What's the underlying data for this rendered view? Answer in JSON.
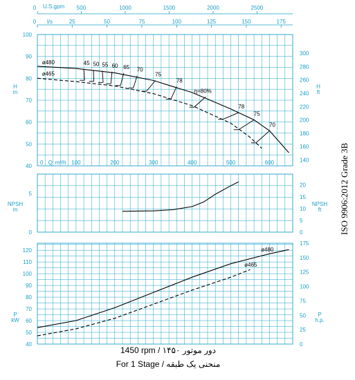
{
  "chart_data": {
    "type": "line",
    "top_axis": {
      "usgpm_label": "U.S.gpm",
      "usgpm_ticks": [
        "0",
        "500",
        "1000",
        "1500",
        "2000",
        "2500"
      ],
      "usgpm_values": [
        0,
        500,
        1000,
        1500,
        2000,
        2500
      ],
      "ls_label": "l/s",
      "ls_ticks": [
        "0",
        "25",
        "50",
        "75",
        "100",
        "125",
        "150",
        "175"
      ],
      "ls_values": [
        0,
        25,
        50,
        75,
        100,
        125,
        150,
        175
      ]
    },
    "x_axis": {
      "label": "Q",
      "unit": "m³/h",
      "ticks": [
        "0",
        "100",
        "200",
        "300",
        "400",
        "500",
        "600"
      ],
      "values": [
        0,
        100,
        200,
        300,
        400,
        500,
        600
      ],
      "range": [
        0,
        660
      ]
    },
    "head_panel": {
      "ylabel_left": "H",
      "unit_left": "m",
      "ylim_left": [
        40,
        100
      ],
      "yticks_left": [
        "40",
        "50",
        "60",
        "70",
        "80",
        "90",
        "100"
      ],
      "ylabel_right": "H",
      "unit_right": "ft",
      "ylim_right": [
        131.23,
        328.08
      ],
      "yticks_right": [
        "140",
        "160",
        "180",
        "200",
        "220",
        "240",
        "260",
        "280",
        "300"
      ],
      "series": [
        {
          "name": "ø480",
          "style": "solid",
          "x": [
            0,
            100,
            200,
            300,
            400,
            500,
            560,
            600,
            650
          ],
          "y": [
            85.5,
            84.5,
            82.5,
            79,
            73.5,
            66,
            61,
            56,
            46
          ]
        },
        {
          "name": "ø465",
          "style": "dashed",
          "x": [
            0,
            100,
            200,
            300,
            400,
            500,
            550,
            580
          ],
          "y": [
            80,
            78.5,
            76.5,
            73,
            67.5,
            59.5,
            53,
            48
          ]
        }
      ],
      "efficiency_labels": [
        "45",
        "50",
        "55",
        "60",
        "65",
        "70",
        "75",
        "78",
        "η=80%",
        "78",
        "75",
        "70"
      ],
      "efficiency_lines": [
        {
          "label": "45",
          "x": [
            120,
            122
          ],
          "y": [
            84.2,
            79.1
          ]
        },
        {
          "label": "50",
          "x": [
            145,
            146
          ],
          "y": [
            83.8,
            78.6
          ]
        },
        {
          "label": "55",
          "x": [
            168,
            170
          ],
          "y": [
            83.4,
            78.1
          ]
        },
        {
          "label": "60",
          "x": [
            193,
            190
          ],
          "y": [
            83,
            77.5
          ]
        },
        {
          "label": "65",
          "x": [
            223,
            215
          ],
          "y": [
            82.3,
            76.7
          ]
        },
        {
          "label": "70",
          "x": [
            258,
            248
          ],
          "y": [
            81.2,
            75.6
          ]
        },
        {
          "label": "75",
          "x": [
            305,
            282
          ],
          "y": [
            79,
            74.1
          ]
        },
        {
          "label": "78",
          "x": [
            360,
            345
          ],
          "y": [
            76.2,
            70.5
          ]
        },
        {
          "label": "η=80%",
          "x": [
            435,
            405
          ],
          "y": [
            71.5,
            66.8
          ]
        },
        {
          "label": "78",
          "x": [
            520,
            480
          ],
          "y": [
            64.3,
            61.3
          ]
        },
        {
          "label": "75",
          "x": [
            560,
            520
          ],
          "y": [
            61,
            56.5
          ]
        },
        {
          "label": "70",
          "x": [
            600,
            565
          ],
          "y": [
            56,
            50.5
          ]
        }
      ]
    },
    "npsh_panel": {
      "ylabel_left": "NPSH",
      "unit_left": "m",
      "ylim_left": [
        0,
        7.5
      ],
      "yticks_left": [
        "0",
        "5"
      ],
      "yvalues_left": [
        0,
        5
      ],
      "ylabel_right": "NPSH",
      "unit_right": "ft",
      "ylim_right": [
        0,
        24.6
      ],
      "yticks_right": [
        "0",
        "5",
        "10",
        "15",
        "20"
      ],
      "series": [
        {
          "name": "NPSH",
          "style": "solid",
          "x": [
            220,
            300,
            350,
            400,
            430,
            460,
            500,
            520
          ],
          "y": [
            2.7,
            2.75,
            2.9,
            3.3,
            3.9,
            4.9,
            6.0,
            6.5
          ]
        }
      ]
    },
    "power_panel": {
      "ylabel_left": "P",
      "unit_left": "kW",
      "ylim_left": [
        40,
        126
      ],
      "yticks_left": [
        "40",
        "50",
        "60",
        "70",
        "80",
        "90",
        "100",
        "110",
        "120"
      ],
      "ylabel_right": "P",
      "unit_right": "h.p.",
      "ylim_right": [
        0,
        175
      ],
      "yticks_right": [
        "0",
        "25",
        "50",
        "75",
        "100",
        "125",
        "150",
        "175"
      ],
      "series": [
        {
          "name": "ø480",
          "style": "solid",
          "x": [
            0,
            100,
            200,
            300,
            400,
            500,
            600,
            650
          ],
          "y": [
            54,
            60,
            71,
            84,
            97,
            108.5,
            117,
            120.5
          ]
        },
        {
          "name": "ø465",
          "style": "dashed",
          "x": [
            0,
            100,
            200,
            300,
            400,
            500,
            550
          ],
          "y": [
            47,
            53,
            62,
            74,
            86,
            97,
            103.5
          ]
        }
      ]
    },
    "side_text": "ISO 9906:2012 Grade 3B",
    "footer_line1": "1450 rpm / ۱۴۵۰ دور موتور",
    "footer_line2": "For 1 Stage / منحنی یک طبقه"
  }
}
